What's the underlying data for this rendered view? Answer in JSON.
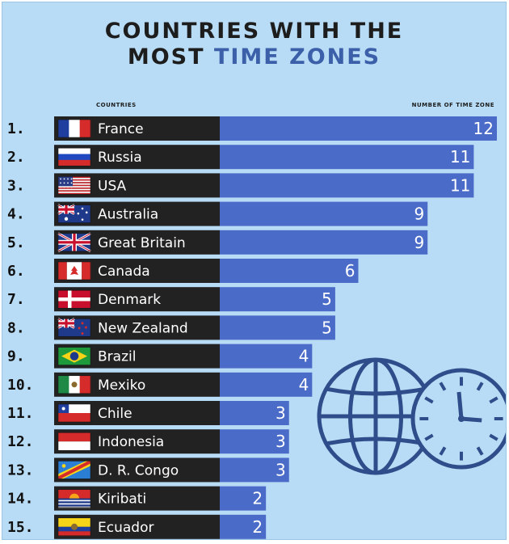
{
  "header": {
    "title_line1": "COUNTRIES WITH THE",
    "title_line2_prefix": "MOST ",
    "title_line2_highlight": "TIME ZONES",
    "countries_col": "COUNTRIES",
    "zones_col": "NUMBER OF TIME ZONE"
  },
  "colors": {
    "background": "#b8dcf5",
    "bar": "#4a6cc8",
    "label_band": "#222222",
    "icon": "#2f4d8a",
    "title_highlight": "#3b5fa8"
  },
  "icons": [
    "globe-icon",
    "clock-icon"
  ],
  "chart_data": {
    "type": "bar",
    "orientation": "horizontal",
    "title": "COUNTRIES WITH THE MOST TIME ZONES",
    "categories": [
      "France",
      "Russia",
      "USA",
      "Australia",
      "Great Britain",
      "Canada",
      "Denmark",
      "New Zealand",
      "Brazil",
      "Mexiko",
      "Chile",
      "Indonesia",
      "D. R. Congo",
      "Kiribati",
      "Ecuador"
    ],
    "ranks": [
      "1.",
      "2.",
      "3.",
      "4.",
      "5.",
      "6.",
      "7.",
      "8.",
      "9.",
      "10.",
      "11.",
      "12.",
      "13.",
      "14.",
      "15."
    ],
    "values": [
      12,
      11,
      11,
      9,
      9,
      6,
      5,
      5,
      4,
      4,
      3,
      3,
      3,
      2,
      2
    ],
    "value_labels": [
      "12",
      "11",
      "11",
      "9",
      "9",
      "6",
      "5",
      "5",
      "4",
      "4",
      "3",
      "3",
      "3",
      "2",
      "2"
    ],
    "flags": [
      "france",
      "russia",
      "usa",
      "australia",
      "great-britain",
      "canada",
      "denmark",
      "new-zealand",
      "brazil",
      "mexico",
      "chile",
      "indonesia",
      "dr-congo",
      "kiribati",
      "ecuador"
    ],
    "xlim": [
      0,
      12
    ],
    "grid": false,
    "legend": "none"
  }
}
